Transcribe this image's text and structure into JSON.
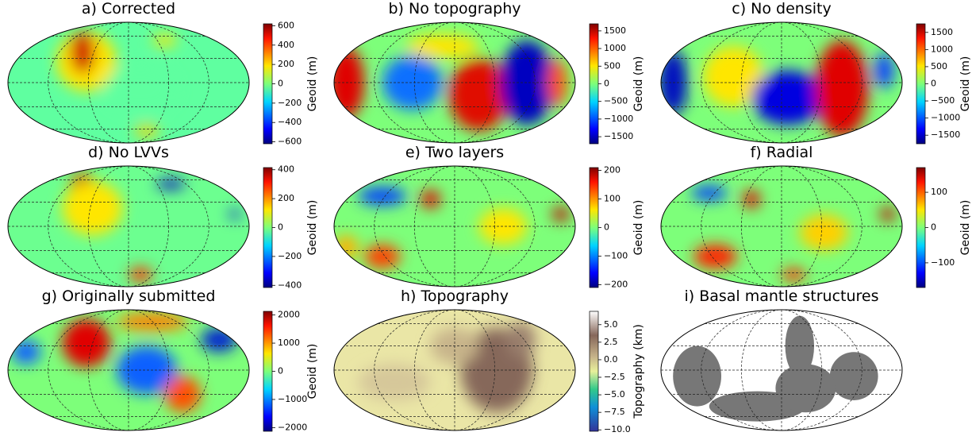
{
  "panels": [
    {
      "title": "a) Corrected",
      "colorbar": {
        "label": "Geoid (m)",
        "lim": [
          -620,
          620
        ],
        "ticks": [
          {
            "value": -600,
            "label": "−600"
          },
          {
            "value": -400,
            "label": "−400"
          },
          {
            "value": -200,
            "label": "−200"
          },
          0,
          200,
          400,
          600
        ],
        "cmap": "jet"
      }
    },
    {
      "title": "b) No topography",
      "colorbar": {
        "label": "Geoid (m)",
        "lim": [
          -1700,
          1700
        ],
        "ticks": [
          {
            "value": -1500,
            "label": "−1500"
          },
          {
            "value": -1000,
            "label": "−1000"
          },
          {
            "value": -500,
            "label": "−500"
          },
          0,
          500,
          1000,
          1500
        ],
        "cmap": "jet"
      }
    },
    {
      "title": "c) No density",
      "colorbar": {
        "label": "Geoid (m)",
        "lim": [
          -1750,
          1750
        ],
        "ticks": [
          {
            "value": -1500,
            "label": "−1500"
          },
          {
            "value": -1000,
            "label": "−1000"
          },
          {
            "value": -500,
            "label": "−500"
          },
          0,
          500,
          1000,
          1500
        ],
        "cmap": "jet"
      }
    },
    {
      "title": "d) No LVVs",
      "colorbar": {
        "label": "Geoid (m)",
        "lim": [
          -415,
          415
        ],
        "ticks": [
          {
            "value": -400,
            "label": "−400"
          },
          {
            "value": -200,
            "label": "−200"
          },
          0,
          200,
          400
        ],
        "cmap": "jet"
      }
    },
    {
      "title": "e) Two layers",
      "colorbar": {
        "label": "Geoid (m)",
        "lim": [
          -210,
          210
        ],
        "ticks": [
          {
            "value": -200,
            "label": "−200"
          },
          {
            "value": -100,
            "label": "−100"
          },
          0,
          100,
          200
        ],
        "cmap": "jet"
      }
    },
    {
      "title": "f) Radial",
      "colorbar": {
        "label": "Geoid (m)",
        "lim": [
          -170,
          170
        ],
        "ticks": [
          {
            "value": -100,
            "label": "−100"
          },
          0,
          100
        ],
        "cmap": "jet"
      }
    },
    {
      "title": "g) Originally submitted",
      "colorbar": {
        "label": "Geoid (m)",
        "lim": [
          -2130,
          2130
        ],
        "ticks": [
          {
            "value": -2000,
            "label": "−2000"
          },
          {
            "value": -1000,
            "label": "−1000"
          },
          0,
          1000,
          2000
        ],
        "cmap": "jet"
      }
    },
    {
      "title": "h) Topography",
      "colorbar": {
        "label": "Topography (km)",
        "lim": [
          -10.2,
          6.9
        ],
        "ticks": [
          {
            "value": -10,
            "label": "−10.0"
          },
          {
            "value": -7.5,
            "label": "−7.5"
          },
          {
            "value": -5,
            "label": "−5.0"
          },
          {
            "value": -2.5,
            "label": "−2.5"
          },
          {
            "value": 0,
            "label": "0.0"
          },
          {
            "value": 2.5,
            "label": "2.5"
          },
          {
            "value": 5,
            "label": "5.0"
          }
        ],
        "cmap": "terrain"
      }
    },
    {
      "title": "i) Basal mantle structures"
    }
  ]
}
